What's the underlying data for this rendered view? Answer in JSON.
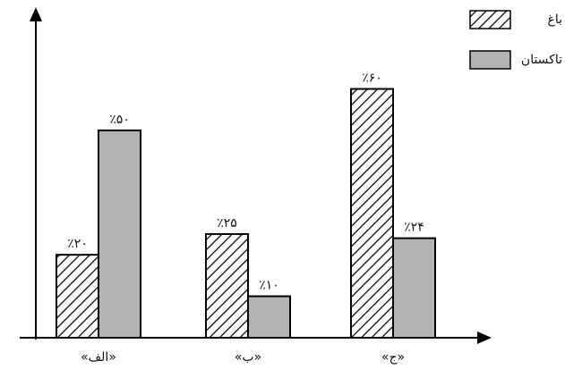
{
  "chart_data": {
    "type": "bar",
    "categories": [
      "«الف»",
      "«ب»",
      "«ج»"
    ],
    "series": [
      {
        "name": "باغ",
        "color": "#000000",
        "hatch": true,
        "values": [
          20,
          25,
          60
        ],
        "value_labels": [
          "٪۲۰",
          "٪۲۵",
          "٪۶۰"
        ]
      },
      {
        "name": "تاکستان",
        "color": "#b3b3b3",
        "hatch": false,
        "values": [
          50,
          10,
          24
        ],
        "value_labels": [
          "٪۵۰",
          "٪۱۰",
          "٪۲۴"
        ]
      }
    ],
    "ylim": [
      0,
      78
    ]
  }
}
